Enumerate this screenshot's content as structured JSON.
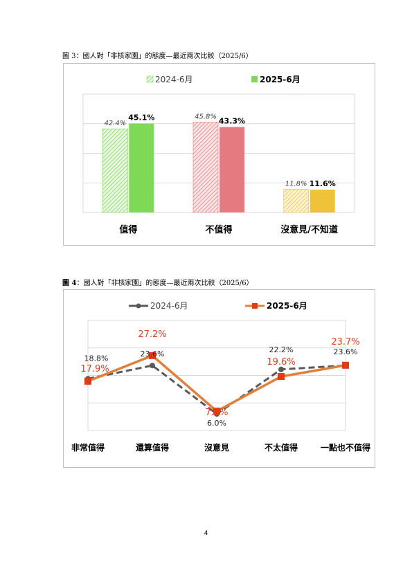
{
  "page_number": "4",
  "figure3": {
    "caption": "圖 3：國人對「非核家園」的態度—最近兩次比較（2025/6）"
  },
  "figure4": {
    "caption_prefix": "圖 4",
    "caption_rest": "：國人對「非核家園」的態度—最近兩次比較（2025/6）"
  },
  "colors": {
    "bar_green": "#7ed957",
    "bar_red": "#e57b80",
    "bar_yellow": "#f0c23a",
    "line_2024": "#595959",
    "line_2025": "#e0803a",
    "marker_2025": "#e23b12",
    "label_2025": "#e0401c"
  },
  "chart_data": [
    {
      "type": "bar",
      "categories": [
        "值得",
        "不值得",
        "沒意見/不知道"
      ],
      "series": [
        {
          "name": "2024-6月",
          "values": [
            42.4,
            45.8,
            11.8
          ],
          "labels": [
            "42.4%",
            "45.8%",
            "11.8%"
          ]
        },
        {
          "name": "2025-6月",
          "values": [
            45.1,
            43.3,
            11.6
          ],
          "labels": [
            "45.1%",
            "43.3%",
            "11.6%"
          ]
        }
      ],
      "ylim": [
        0,
        60
      ],
      "grid": true,
      "legend": "top"
    },
    {
      "type": "line",
      "categories": [
        "非常值得",
        "還算值得",
        "沒意見",
        "不太值得",
        "一點也不值得"
      ],
      "series": [
        {
          "name": "2024-6月",
          "values": [
            18.8,
            23.6,
            6.0,
            22.2,
            23.6
          ],
          "labels": [
            "18.8%",
            "23.6%",
            "6.0%",
            "22.2%",
            "23.6%"
          ]
        },
        {
          "name": "2025-6月",
          "values": [
            17.9,
            27.2,
            7.0,
            19.6,
            23.7
          ],
          "labels": [
            "17.9%",
            "27.2%",
            "7.0%",
            "19.6%",
            "23.7%"
          ]
        }
      ],
      "ylim": [
        0,
        40
      ],
      "grid": true,
      "legend": "top"
    }
  ]
}
